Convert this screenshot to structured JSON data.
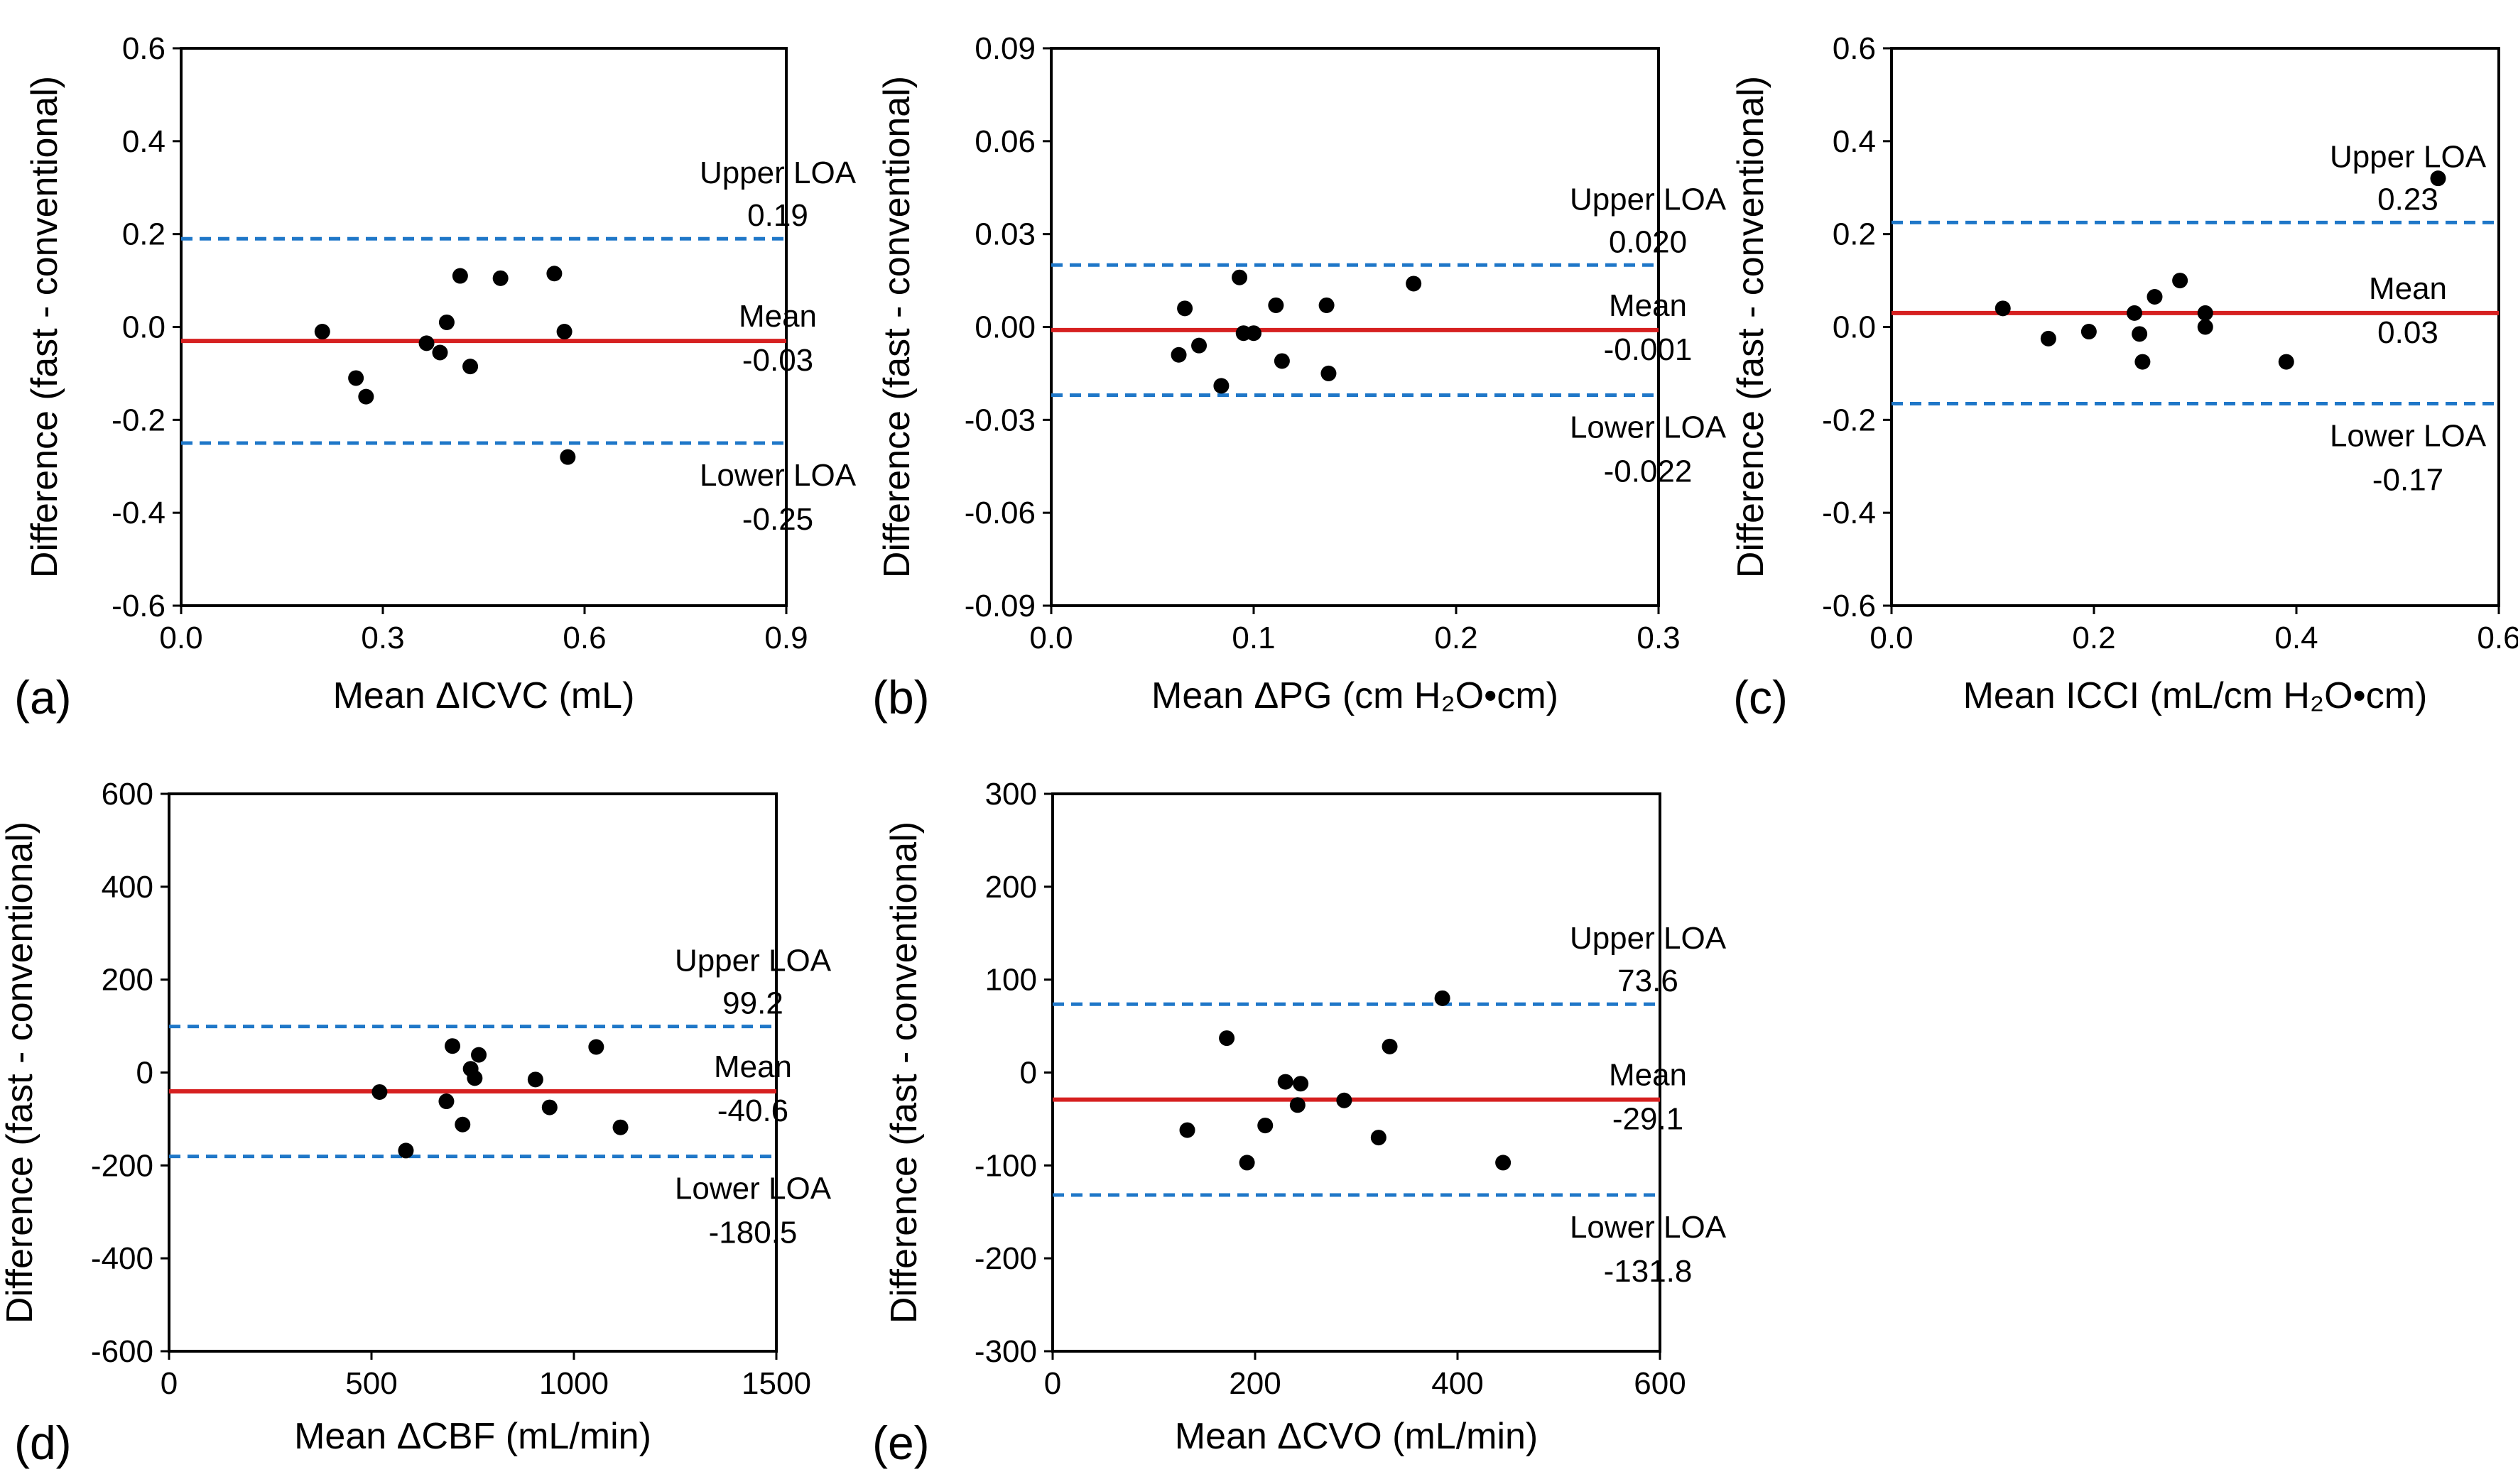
{
  "colors": {
    "mean_line": "#d62020",
    "loa_line": "#1f77c8",
    "points": "#000000",
    "frame": "#000000"
  },
  "chart_data": [
    {
      "type": "scatter",
      "panel_label": "(a)",
      "xlabel": "Mean ΔICVC (mL)",
      "ylabel": "Difference (fast - conventional)",
      "xlim": [
        0,
        0.9
      ],
      "ylim": [
        -0.6,
        0.6
      ],
      "xticks": [
        "0.0",
        "0.3",
        "0.6",
        "0.9"
      ],
      "yticks": [
        "-0.6",
        "-0.4",
        "-0.2",
        "0.0",
        "0.2",
        "0.4",
        "0.6"
      ],
      "grid": false,
      "points": [
        [
          0.21,
          -0.01
        ],
        [
          0.26,
          -0.11
        ],
        [
          0.275,
          -0.15
        ],
        [
          0.365,
          -0.035
        ],
        [
          0.385,
          -0.055
        ],
        [
          0.395,
          0.01
        ],
        [
          0.415,
          0.11
        ],
        [
          0.43,
          -0.085
        ],
        [
          0.475,
          0.105
        ],
        [
          0.555,
          0.115
        ],
        [
          0.57,
          -0.01
        ],
        [
          0.575,
          -0.28
        ]
      ],
      "lines": {
        "mean": {
          "label": "Mean",
          "value_text": "-0.03",
          "value": -0.03
        },
        "upper": {
          "label": "Upper LOA",
          "value_text": "0.19",
          "value": 0.19
        },
        "lower": {
          "label": "Lower LOA",
          "value_text": "-0.25",
          "value": -0.25
        }
      }
    },
    {
      "type": "scatter",
      "panel_label": "(b)",
      "xlabel": "Mean ΔPG (cm H₂O•cm)",
      "ylabel": "Difference (fast - conventional)",
      "xlim": [
        0,
        0.3
      ],
      "ylim": [
        -0.09,
        0.09
      ],
      "xticks": [
        "0.0",
        "0.1",
        "0.2",
        "0.3"
      ],
      "yticks": [
        "-0.09",
        "-0.06",
        "-0.03",
        "0.00",
        "0.03",
        "0.06",
        "0.09"
      ],
      "grid": false,
      "points": [
        [
          0.063,
          -0.009
        ],
        [
          0.066,
          0.006
        ],
        [
          0.073,
          -0.006
        ],
        [
          0.084,
          -0.019
        ],
        [
          0.093,
          0.016
        ],
        [
          0.095,
          -0.002
        ],
        [
          0.1,
          -0.002
        ],
        [
          0.111,
          0.007
        ],
        [
          0.114,
          -0.011
        ],
        [
          0.136,
          0.007
        ],
        [
          0.137,
          -0.015
        ],
        [
          0.179,
          0.014
        ]
      ],
      "lines": {
        "mean": {
          "label": "Mean",
          "value_text": "-0.001",
          "value": -0.001
        },
        "upper": {
          "label": "Upper LOA",
          "value_text": "0.020",
          "value": 0.02
        },
        "lower": {
          "label": "Lower LOA",
          "value_text": "-0.022",
          "value": -0.022
        }
      }
    },
    {
      "type": "scatter",
      "panel_label": "(c)",
      "xlabel": "Mean ICCI (mL/cm H₂O•cm)",
      "ylabel": "Difference (fast - conventional)",
      "xlim": [
        0,
        0.6
      ],
      "ylim": [
        -0.6,
        0.6
      ],
      "xticks": [
        "0.0",
        "0.2",
        "0.4",
        "0.6"
      ],
      "yticks": [
        "-0.6",
        "-0.4",
        "-0.2",
        "0.0",
        "0.2",
        "0.4",
        "0.6"
      ],
      "grid": false,
      "points": [
        [
          0.11,
          0.04
        ],
        [
          0.155,
          -0.025
        ],
        [
          0.195,
          -0.01
        ],
        [
          0.24,
          0.03
        ],
        [
          0.245,
          -0.015
        ],
        [
          0.248,
          -0.075
        ],
        [
          0.26,
          0.065
        ],
        [
          0.285,
          0.1
        ],
        [
          0.31,
          0.03
        ],
        [
          0.31,
          0.0
        ],
        [
          0.39,
          -0.075
        ],
        [
          0.54,
          0.32
        ]
      ],
      "lines": {
        "mean": {
          "label": "Mean",
          "value_text": "0.03",
          "value": 0.03
        },
        "upper": {
          "label": "Upper LOA",
          "value_text": "0.23",
          "value": 0.225
        },
        "lower": {
          "label": "Lower LOA",
          "value_text": "-0.17",
          "value": -0.165
        }
      }
    },
    {
      "type": "scatter",
      "panel_label": "(d)",
      "xlabel": "Mean ΔCBF (mL/min)",
      "ylabel": "Difference (fast - conventional)",
      "xlim": [
        0,
        1500
      ],
      "ylim": [
        -600,
        600
      ],
      "xticks": [
        "0",
        "500",
        "1000",
        "1500"
      ],
      "yticks": [
        "-600",
        "-400",
        "-200",
        "0",
        "200",
        "400",
        "600"
      ],
      "grid": false,
      "points": [
        [
          520,
          -42
        ],
        [
          585,
          -168
        ],
        [
          685,
          -62
        ],
        [
          700,
          57
        ],
        [
          725,
          -112
        ],
        [
          745,
          8
        ],
        [
          755,
          -12
        ],
        [
          765,
          38
        ],
        [
          905,
          -15
        ],
        [
          940,
          -75
        ],
        [
          1055,
          55
        ],
        [
          1115,
          -118
        ]
      ],
      "lines": {
        "mean": {
          "label": "Mean",
          "value_text": "-40.6",
          "value": -40.6
        },
        "upper": {
          "label": "Upper LOA",
          "value_text": "99.2",
          "value": 99.2
        },
        "lower": {
          "label": "Lower LOA",
          "value_text": "-180.5",
          "value": -180.5
        }
      }
    },
    {
      "type": "scatter",
      "panel_label": "(e)",
      "xlabel": "Mean ΔCVO (mL/min)",
      "ylabel": "Difference (fast - conventional)",
      "xlim": [
        0,
        600
      ],
      "ylim": [
        -300,
        300
      ],
      "xticks": [
        "0",
        "200",
        "400",
        "600"
      ],
      "yticks": [
        "-300",
        "-200",
        "-100",
        "0",
        "100",
        "200",
        "300"
      ],
      "grid": false,
      "points": [
        [
          133,
          -62
        ],
        [
          172,
          37
        ],
        [
          192,
          -97
        ],
        [
          210,
          -57
        ],
        [
          230,
          -10
        ],
        [
          242,
          -35
        ],
        [
          245,
          -12
        ],
        [
          288,
          -30
        ],
        [
          322,
          -70
        ],
        [
          333,
          28
        ],
        [
          385,
          80
        ],
        [
          445,
          -97
        ]
      ],
      "lines": {
        "mean": {
          "label": "Mean",
          "value_text": "-29.1",
          "value": -29.1
        },
        "upper": {
          "label": "Upper LOA",
          "value_text": "73.6",
          "value": 73.6
        },
        "lower": {
          "label": "Lower LOA",
          "value_text": "-131.8",
          "value": -131.8
        }
      }
    }
  ]
}
